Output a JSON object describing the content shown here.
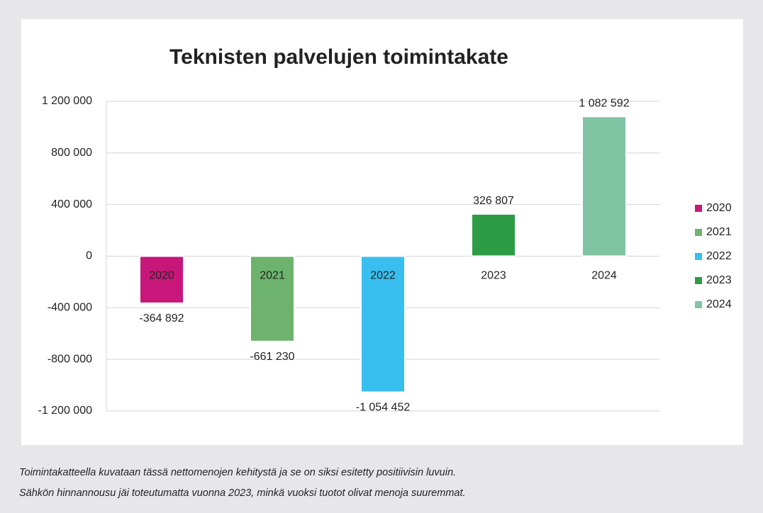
{
  "chart_data": {
    "type": "bar",
    "title": "Teknisten palvelujen toimintakate",
    "categories": [
      "2020",
      "2021",
      "2022",
      "2023",
      "2024"
    ],
    "values": [
      -364892,
      -661230,
      -1054452,
      326807,
      1082592
    ],
    "value_labels": [
      "-364 892",
      "-661 230",
      "-1 054 452",
      "326 807",
      "1 082 592"
    ],
    "colors": [
      "#c8177a",
      "#6db36d",
      "#38bff0",
      "#2e9c45",
      "#80c4a4"
    ],
    "ylim": [
      -1200000,
      1200000
    ],
    "yticks": [
      {
        "value": -1200000,
        "label": "-1 200 000"
      },
      {
        "value": -800000,
        "label": "-800 000"
      },
      {
        "value": -400000,
        "label": "-400 000"
      },
      0,
      {
        "value": 400000,
        "label": "400 000"
      },
      {
        "value": 800000,
        "label": "800 000"
      },
      {
        "value": 1200000,
        "label": "1 200 000"
      }
    ],
    "grid": true,
    "legend": "right"
  },
  "notes": [
    "Toimintakatteella kuvataan tässä nettomenojen kehitystä ja se on siksi esitetty positiivisin luvuin.",
    "Sähkön hinnannousu jäi toteutumatta vuonna 2023, minkä vuoksi tuotot olivat menoja suuremmat."
  ]
}
